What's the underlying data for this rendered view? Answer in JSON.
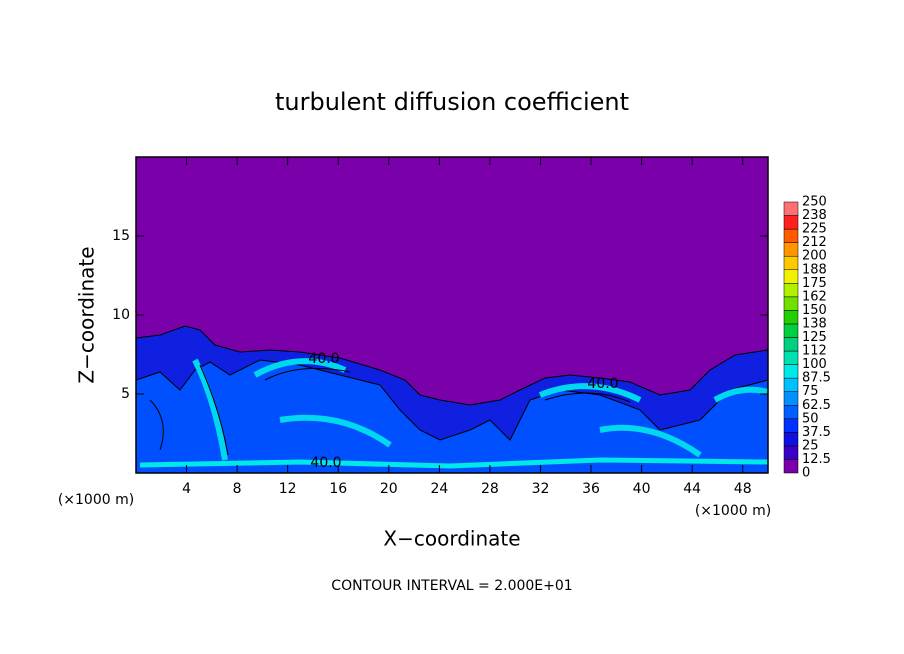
{
  "chart_data": {
    "type": "contour",
    "title": "turbulent diffusion coefficient",
    "xlabel": "X−coordinate",
    "ylabel": "Z−coordinate",
    "x_units": "(×1000 m)",
    "x_units_right": "(×1000 m)",
    "footer": "CONTOUR INTERVAL = 2.000E+01",
    "xlim": [
      0,
      50
    ],
    "ylim": [
      0,
      20
    ],
    "xticks": [
      4,
      8,
      12,
      16,
      20,
      24,
      28,
      32,
      36,
      40,
      44,
      48
    ],
    "yticks": [
      5,
      10,
      15
    ],
    "annotations": [
      "40.0",
      "40.0",
      "40.0"
    ],
    "colorbar": {
      "levels": [
        0,
        12.5,
        25,
        37.5,
        50,
        62.5,
        75,
        87.5,
        100,
        112,
        125,
        138,
        150,
        162,
        175,
        188,
        200,
        212,
        225,
        238,
        250
      ],
      "colors": [
        "#7a00aa",
        "#3a00c8",
        "#1010e0",
        "#0030ff",
        "#0060ff",
        "#0090ff",
        "#00c0ff",
        "#00e8e8",
        "#00e0b0",
        "#00d080",
        "#00d040",
        "#20d000",
        "#70e000",
        "#b0f000",
        "#f0f000",
        "#ffc800",
        "#ff9600",
        "#ff5a00",
        "#ff2020",
        "#ff7070"
      ]
    }
  }
}
